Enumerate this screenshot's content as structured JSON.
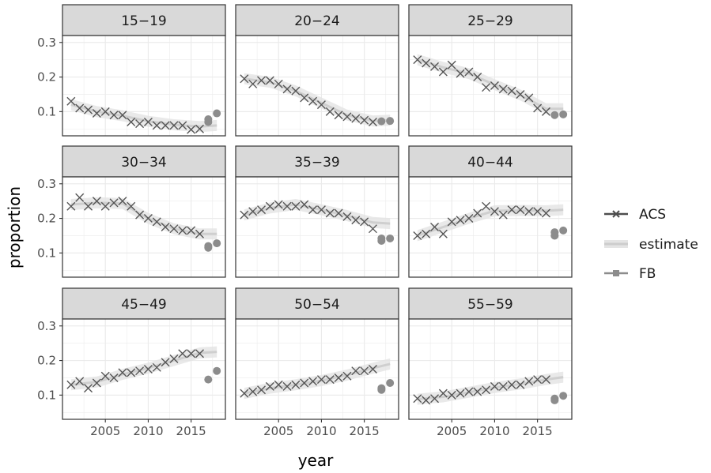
{
  "chart_data": {
    "type": "scatter",
    "facet_type": "small-multiples",
    "xlabel": "year",
    "ylabel": "proportion",
    "xlim": [
      2000,
      2019
    ],
    "ylim": [
      0.03,
      0.32
    ],
    "x_ticks": [
      2005,
      2010,
      2015
    ],
    "x_tick_labels": [
      "2005",
      "2010",
      "2015"
    ],
    "y_ticks": [
      0.1,
      0.2,
      0.3
    ],
    "y_tick_labels": [
      "0.1",
      "0.2",
      "0.3"
    ],
    "grid": true,
    "legend_position": "right",
    "legend": [
      {
        "name": "ACS",
        "color": "#4d4d4d",
        "marker": "x"
      },
      {
        "name": "estimate",
        "color": "#cccccc",
        "marker": "line-band"
      },
      {
        "name": "FB",
        "color": "#8c8c8c",
        "marker": "point"
      }
    ],
    "colors": {
      "acs": "#555555",
      "estimate_line": "#cfcfcf",
      "estimate_band": "#e4e4e4",
      "fb": "#8c8c8c",
      "strip": "#d9d9d9",
      "grid": "#ebebeb",
      "border": "#333333"
    },
    "panels": [
      {
        "label": "15−19",
        "acs": [
          [
            2001,
            0.13
          ],
          [
            2002,
            0.11
          ],
          [
            2003,
            0.105
          ],
          [
            2004,
            0.095
          ],
          [
            2005,
            0.1
          ],
          [
            2006,
            0.09
          ],
          [
            2007,
            0.09
          ],
          [
            2008,
            0.07
          ],
          [
            2009,
            0.065
          ],
          [
            2010,
            0.07
          ],
          [
            2011,
            0.06
          ],
          [
            2012,
            0.06
          ],
          [
            2013,
            0.06
          ],
          [
            2014,
            0.06
          ],
          [
            2015,
            0.048
          ],
          [
            2016,
            0.05
          ]
        ],
        "estimate": [
          [
            2001,
            0.12
          ],
          [
            2004,
            0.1
          ],
          [
            2007,
            0.088
          ],
          [
            2010,
            0.072
          ],
          [
            2013,
            0.062
          ],
          [
            2016,
            0.057
          ],
          [
            2018,
            0.06
          ]
        ],
        "fb": [
          [
            2017,
            0.07
          ],
          [
            2017,
            0.078
          ],
          [
            2018,
            0.095
          ]
        ]
      },
      {
        "label": "20−24",
        "acs": [
          [
            2001,
            0.195
          ],
          [
            2002,
            0.18
          ],
          [
            2003,
            0.19
          ],
          [
            2004,
            0.19
          ],
          [
            2005,
            0.18
          ],
          [
            2006,
            0.165
          ],
          [
            2007,
            0.16
          ],
          [
            2008,
            0.14
          ],
          [
            2009,
            0.13
          ],
          [
            2010,
            0.12
          ],
          [
            2011,
            0.1
          ],
          [
            2012,
            0.09
          ],
          [
            2013,
            0.085
          ],
          [
            2014,
            0.08
          ],
          [
            2015,
            0.075
          ],
          [
            2016,
            0.07
          ]
        ],
        "estimate": [
          [
            2001,
            0.195
          ],
          [
            2004,
            0.185
          ],
          [
            2007,
            0.16
          ],
          [
            2010,
            0.125
          ],
          [
            2013,
            0.09
          ],
          [
            2016,
            0.073
          ],
          [
            2018,
            0.075
          ]
        ],
        "fb": [
          [
            2017,
            0.072
          ],
          [
            2018,
            0.073
          ]
        ]
      },
      {
        "label": "25−29",
        "acs": [
          [
            2001,
            0.25
          ],
          [
            2002,
            0.24
          ],
          [
            2003,
            0.23
          ],
          [
            2004,
            0.215
          ],
          [
            2005,
            0.235
          ],
          [
            2006,
            0.21
          ],
          [
            2007,
            0.215
          ],
          [
            2008,
            0.2
          ],
          [
            2009,
            0.17
          ],
          [
            2010,
            0.175
          ],
          [
            2011,
            0.165
          ],
          [
            2012,
            0.16
          ],
          [
            2013,
            0.15
          ],
          [
            2014,
            0.14
          ],
          [
            2015,
            0.11
          ],
          [
            2016,
            0.1
          ]
        ],
        "estimate": [
          [
            2001,
            0.25
          ],
          [
            2004,
            0.228
          ],
          [
            2007,
            0.21
          ],
          [
            2010,
            0.178
          ],
          [
            2013,
            0.148
          ],
          [
            2016,
            0.108
          ],
          [
            2018,
            0.108
          ]
        ],
        "fb": [
          [
            2017,
            0.09
          ],
          [
            2018,
            0.092
          ]
        ]
      },
      {
        "label": "30−34",
        "acs": [
          [
            2001,
            0.235
          ],
          [
            2002,
            0.26
          ],
          [
            2003,
            0.235
          ],
          [
            2004,
            0.25
          ],
          [
            2005,
            0.235
          ],
          [
            2006,
            0.245
          ],
          [
            2007,
            0.25
          ],
          [
            2008,
            0.235
          ],
          [
            2009,
            0.21
          ],
          [
            2010,
            0.2
          ],
          [
            2011,
            0.19
          ],
          [
            2012,
            0.175
          ],
          [
            2013,
            0.17
          ],
          [
            2014,
            0.165
          ],
          [
            2015,
            0.165
          ],
          [
            2016,
            0.155
          ]
        ],
        "estimate": [
          [
            2001,
            0.24
          ],
          [
            2004,
            0.245
          ],
          [
            2007,
            0.243
          ],
          [
            2010,
            0.2
          ],
          [
            2013,
            0.17
          ],
          [
            2016,
            0.155
          ],
          [
            2018,
            0.155
          ]
        ],
        "fb": [
          [
            2017,
            0.115
          ],
          [
            2017,
            0.12
          ],
          [
            2018,
            0.128
          ]
        ]
      },
      {
        "label": "35−39",
        "acs": [
          [
            2001,
            0.21
          ],
          [
            2002,
            0.22
          ],
          [
            2003,
            0.225
          ],
          [
            2004,
            0.235
          ],
          [
            2005,
            0.24
          ],
          [
            2006,
            0.235
          ],
          [
            2007,
            0.235
          ],
          [
            2008,
            0.24
          ],
          [
            2009,
            0.225
          ],
          [
            2010,
            0.225
          ],
          [
            2011,
            0.215
          ],
          [
            2012,
            0.215
          ],
          [
            2013,
            0.205
          ],
          [
            2014,
            0.195
          ],
          [
            2015,
            0.19
          ],
          [
            2016,
            0.17
          ]
        ],
        "estimate": [
          [
            2001,
            0.21
          ],
          [
            2004,
            0.23
          ],
          [
            2007,
            0.24
          ],
          [
            2010,
            0.225
          ],
          [
            2013,
            0.208
          ],
          [
            2016,
            0.188
          ],
          [
            2018,
            0.185
          ]
        ],
        "fb": [
          [
            2017,
            0.135
          ],
          [
            2017,
            0.142
          ],
          [
            2018,
            0.142
          ]
        ]
      },
      {
        "label": "40−44",
        "acs": [
          [
            2001,
            0.15
          ],
          [
            2002,
            0.155
          ],
          [
            2003,
            0.175
          ],
          [
            2004,
            0.155
          ],
          [
            2005,
            0.19
          ],
          [
            2006,
            0.195
          ],
          [
            2007,
            0.2
          ],
          [
            2008,
            0.215
          ],
          [
            2009,
            0.235
          ],
          [
            2010,
            0.22
          ],
          [
            2011,
            0.21
          ],
          [
            2012,
            0.225
          ],
          [
            2013,
            0.225
          ],
          [
            2014,
            0.22
          ],
          [
            2015,
            0.22
          ],
          [
            2016,
            0.215
          ]
        ],
        "estimate": [
          [
            2001,
            0.15
          ],
          [
            2004,
            0.175
          ],
          [
            2007,
            0.2
          ],
          [
            2010,
            0.222
          ],
          [
            2013,
            0.223
          ],
          [
            2016,
            0.222
          ],
          [
            2018,
            0.225
          ]
        ],
        "fb": [
          [
            2017,
            0.15
          ],
          [
            2017,
            0.16
          ],
          [
            2018,
            0.165
          ]
        ]
      },
      {
        "label": "45−49",
        "acs": [
          [
            2001,
            0.13
          ],
          [
            2002,
            0.14
          ],
          [
            2003,
            0.12
          ],
          [
            2004,
            0.135
          ],
          [
            2005,
            0.155
          ],
          [
            2006,
            0.15
          ],
          [
            2007,
            0.165
          ],
          [
            2008,
            0.165
          ],
          [
            2009,
            0.17
          ],
          [
            2010,
            0.175
          ],
          [
            2011,
            0.18
          ],
          [
            2012,
            0.195
          ],
          [
            2013,
            0.205
          ],
          [
            2014,
            0.22
          ],
          [
            2015,
            0.22
          ],
          [
            2016,
            0.22
          ]
        ],
        "estimate": [
          [
            2001,
            0.13
          ],
          [
            2004,
            0.138
          ],
          [
            2007,
            0.16
          ],
          [
            2010,
            0.178
          ],
          [
            2013,
            0.2
          ],
          [
            2016,
            0.222
          ],
          [
            2018,
            0.225
          ]
        ],
        "fb": [
          [
            2017,
            0.145
          ],
          [
            2018,
            0.17
          ]
        ]
      },
      {
        "label": "50−54",
        "acs": [
          [
            2001,
            0.105
          ],
          [
            2002,
            0.11
          ],
          [
            2003,
            0.115
          ],
          [
            2004,
            0.125
          ],
          [
            2005,
            0.13
          ],
          [
            2006,
            0.125
          ],
          [
            2007,
            0.13
          ],
          [
            2008,
            0.135
          ],
          [
            2009,
            0.14
          ],
          [
            2010,
            0.145
          ],
          [
            2011,
            0.145
          ],
          [
            2012,
            0.15
          ],
          [
            2013,
            0.155
          ],
          [
            2014,
            0.17
          ],
          [
            2015,
            0.17
          ],
          [
            2016,
            0.175
          ]
        ],
        "estimate": [
          [
            2001,
            0.105
          ],
          [
            2004,
            0.12
          ],
          [
            2007,
            0.13
          ],
          [
            2010,
            0.142
          ],
          [
            2013,
            0.158
          ],
          [
            2016,
            0.178
          ],
          [
            2018,
            0.19
          ]
        ],
        "fb": [
          [
            2017,
            0.115
          ],
          [
            2017,
            0.12
          ],
          [
            2018,
            0.135
          ]
        ]
      },
      {
        "label": "55−59",
        "acs": [
          [
            2001,
            0.09
          ],
          [
            2002,
            0.085
          ],
          [
            2003,
            0.09
          ],
          [
            2004,
            0.105
          ],
          [
            2005,
            0.1
          ],
          [
            2006,
            0.105
          ],
          [
            2007,
            0.11
          ],
          [
            2008,
            0.11
          ],
          [
            2009,
            0.115
          ],
          [
            2010,
            0.125
          ],
          [
            2011,
            0.125
          ],
          [
            2012,
            0.13
          ],
          [
            2013,
            0.13
          ],
          [
            2014,
            0.14
          ],
          [
            2015,
            0.145
          ],
          [
            2016,
            0.145
          ]
        ],
        "estimate": [
          [
            2001,
            0.088
          ],
          [
            2004,
            0.095
          ],
          [
            2007,
            0.108
          ],
          [
            2010,
            0.122
          ],
          [
            2013,
            0.132
          ],
          [
            2016,
            0.145
          ],
          [
            2018,
            0.152
          ]
        ],
        "fb": [
          [
            2017,
            0.085
          ],
          [
            2017,
            0.09
          ],
          [
            2018,
            0.098
          ]
        ]
      }
    ]
  }
}
